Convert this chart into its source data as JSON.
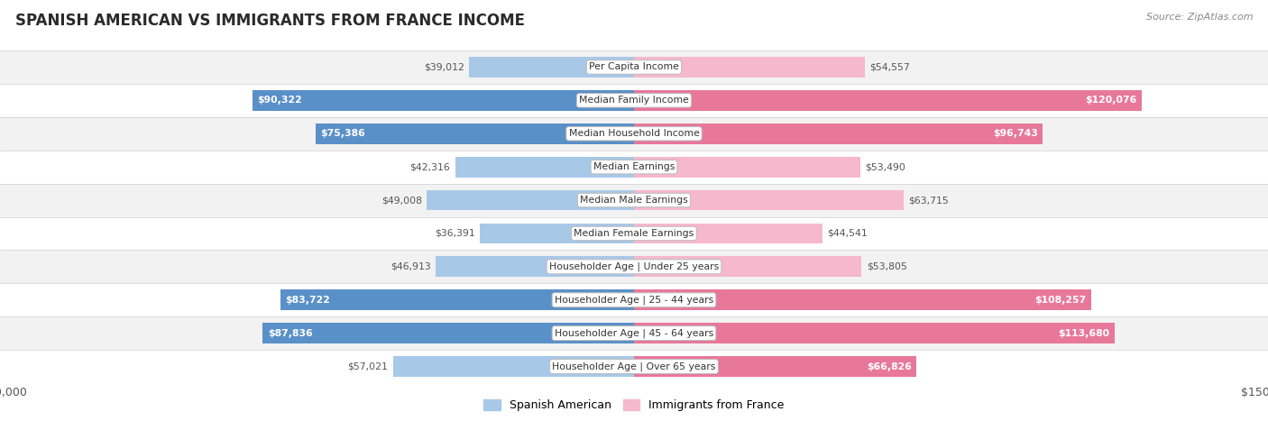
{
  "title": "SPANISH AMERICAN VS IMMIGRANTS FROM FRANCE INCOME",
  "source": "Source: ZipAtlas.com",
  "categories": [
    "Per Capita Income",
    "Median Family Income",
    "Median Household Income",
    "Median Earnings",
    "Median Male Earnings",
    "Median Female Earnings",
    "Householder Age | Under 25 years",
    "Householder Age | 25 - 44 years",
    "Householder Age | 45 - 64 years",
    "Householder Age | Over 65 years"
  ],
  "spanish_american": [
    39012,
    90322,
    75386,
    42316,
    49008,
    36391,
    46913,
    83722,
    87836,
    57021
  ],
  "immigrants_france": [
    54557,
    120076,
    96743,
    53490,
    63715,
    44541,
    53805,
    108257,
    113680,
    66826
  ],
  "max_val": 150000,
  "blue_light": "#a8c8e8",
  "blue_dark": "#5a90c8",
  "pink_light": "#f5b8cc",
  "pink_dark": "#e8789a",
  "row_bg_odd": "#f2f2f2",
  "row_bg_even": "#ffffff",
  "text_dark": "#555555",
  "text_white": "#ffffff",
  "bar_height": 0.62,
  "large_threshold_sa": 65000,
  "large_threshold_fr": 65000,
  "legend_blue": "Spanish American",
  "legend_pink": "Immigrants from France",
  "title_fontsize": 12,
  "source_fontsize": 8,
  "label_fontsize": 7.8,
  "cat_fontsize": 7.8
}
